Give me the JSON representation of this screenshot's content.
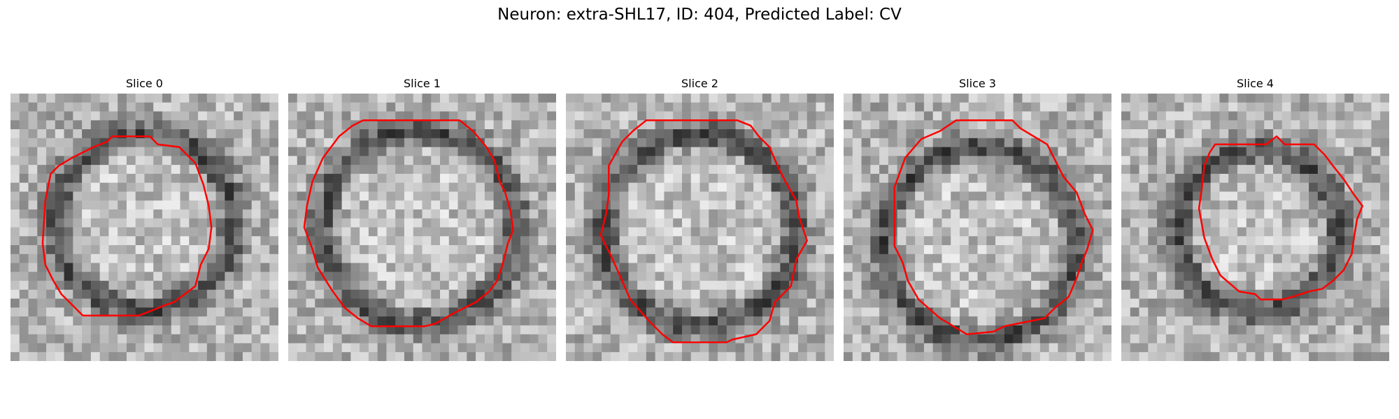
{
  "figure": {
    "title": "Neuron: extra-SHL17, ID: 404, Predicted Label: CV",
    "contour_color": "#ff0000"
  },
  "panels": [
    {
      "title": "Slice 0",
      "ring_center": [
        0.5,
        0.48
      ],
      "ring_radius": 0.33,
      "outline": [
        [
          0.38,
          0.16
        ],
        [
          0.52,
          0.16
        ],
        [
          0.55,
          0.19
        ],
        [
          0.63,
          0.2
        ],
        [
          0.69,
          0.26
        ],
        [
          0.72,
          0.34
        ],
        [
          0.74,
          0.42
        ],
        [
          0.75,
          0.5
        ],
        [
          0.74,
          0.58
        ],
        [
          0.71,
          0.64
        ],
        [
          0.69,
          0.72
        ],
        [
          0.61,
          0.78
        ],
        [
          0.58,
          0.79
        ],
        [
          0.53,
          0.81
        ],
        [
          0.48,
          0.83
        ],
        [
          0.27,
          0.83
        ],
        [
          0.19,
          0.75
        ],
        [
          0.16,
          0.7
        ],
        [
          0.13,
          0.64
        ],
        [
          0.12,
          0.56
        ],
        [
          0.13,
          0.4
        ],
        [
          0.15,
          0.3
        ],
        [
          0.18,
          0.27
        ],
        [
          0.23,
          0.24
        ],
        [
          0.27,
          0.22
        ],
        [
          0.31,
          0.2
        ],
        [
          0.36,
          0.18
        ]
      ]
    },
    {
      "title": "Slice 1",
      "ring_center": [
        0.49,
        0.5
      ],
      "ring_radius": 0.36,
      "outline": [
        [
          0.28,
          0.1
        ],
        [
          0.64,
          0.1
        ],
        [
          0.69,
          0.14
        ],
        [
          0.74,
          0.2
        ],
        [
          0.77,
          0.25
        ],
        [
          0.79,
          0.33
        ],
        [
          0.81,
          0.37
        ],
        [
          0.83,
          0.44
        ],
        [
          0.84,
          0.51
        ],
        [
          0.82,
          0.56
        ],
        [
          0.8,
          0.64
        ],
        [
          0.78,
          0.7
        ],
        [
          0.75,
          0.74
        ],
        [
          0.7,
          0.78
        ],
        [
          0.62,
          0.82
        ],
        [
          0.55,
          0.86
        ],
        [
          0.51,
          0.87
        ],
        [
          0.31,
          0.87
        ],
        [
          0.26,
          0.84
        ],
        [
          0.21,
          0.8
        ],
        [
          0.16,
          0.73
        ],
        [
          0.11,
          0.65
        ],
        [
          0.09,
          0.58
        ],
        [
          0.06,
          0.5
        ],
        [
          0.07,
          0.42
        ],
        [
          0.09,
          0.33
        ],
        [
          0.13,
          0.24
        ],
        [
          0.19,
          0.16
        ],
        [
          0.24,
          0.12
        ]
      ]
    },
    {
      "title": "Slice 2",
      "ring_center": [
        0.5,
        0.51
      ],
      "ring_radius": 0.36,
      "outline": [
        [
          0.3,
          0.1
        ],
        [
          0.64,
          0.1
        ],
        [
          0.69,
          0.12
        ],
        [
          0.72,
          0.16
        ],
        [
          0.76,
          0.2
        ],
        [
          0.79,
          0.27
        ],
        [
          0.82,
          0.33
        ],
        [
          0.86,
          0.4
        ],
        [
          0.87,
          0.46
        ],
        [
          0.9,
          0.55
        ],
        [
          0.86,
          0.62
        ],
        [
          0.84,
          0.72
        ],
        [
          0.78,
          0.78
        ],
        [
          0.76,
          0.85
        ],
        [
          0.71,
          0.9
        ],
        [
          0.62,
          0.92
        ],
        [
          0.6,
          0.93
        ],
        [
          0.4,
          0.93
        ],
        [
          0.36,
          0.9
        ],
        [
          0.31,
          0.85
        ],
        [
          0.24,
          0.77
        ],
        [
          0.21,
          0.7
        ],
        [
          0.17,
          0.61
        ],
        [
          0.13,
          0.53
        ],
        [
          0.15,
          0.45
        ],
        [
          0.16,
          0.38
        ],
        [
          0.16,
          0.27
        ],
        [
          0.21,
          0.18
        ],
        [
          0.25,
          0.14
        ]
      ]
    },
    {
      "title": "Slice 3",
      "ring_center": [
        0.51,
        0.56
      ],
      "ring_radius": 0.36,
      "outline": [
        [
          0.42,
          0.1
        ],
        [
          0.63,
          0.1
        ],
        [
          0.66,
          0.13
        ],
        [
          0.71,
          0.16
        ],
        [
          0.76,
          0.19
        ],
        [
          0.79,
          0.25
        ],
        [
          0.82,
          0.31
        ],
        [
          0.87,
          0.37
        ],
        [
          0.9,
          0.45
        ],
        [
          0.93,
          0.51
        ],
        [
          0.91,
          0.58
        ],
        [
          0.89,
          0.63
        ],
        [
          0.87,
          0.69
        ],
        [
          0.84,
          0.76
        ],
        [
          0.79,
          0.8
        ],
        [
          0.75,
          0.84
        ],
        [
          0.65,
          0.86
        ],
        [
          0.6,
          0.87
        ],
        [
          0.56,
          0.89
        ],
        [
          0.46,
          0.9
        ],
        [
          0.41,
          0.87
        ],
        [
          0.36,
          0.84
        ],
        [
          0.28,
          0.77
        ],
        [
          0.24,
          0.7
        ],
        [
          0.22,
          0.63
        ],
        [
          0.19,
          0.57
        ],
        [
          0.19,
          0.35
        ],
        [
          0.23,
          0.24
        ],
        [
          0.29,
          0.17
        ],
        [
          0.36,
          0.14
        ]
      ]
    },
    {
      "title": "Slice 4",
      "ring_center": [
        0.51,
        0.51
      ],
      "ring_radius": 0.3,
      "outline": [
        [
          0.35,
          0.19
        ],
        [
          0.54,
          0.19
        ],
        [
          0.58,
          0.16
        ],
        [
          0.61,
          0.19
        ],
        [
          0.72,
          0.19
        ],
        [
          0.76,
          0.23
        ],
        [
          0.79,
          0.27
        ],
        [
          0.83,
          0.32
        ],
        [
          0.87,
          0.38
        ],
        [
          0.9,
          0.42
        ],
        [
          0.88,
          0.47
        ],
        [
          0.87,
          0.53
        ],
        [
          0.86,
          0.6
        ],
        [
          0.83,
          0.66
        ],
        [
          0.79,
          0.7
        ],
        [
          0.75,
          0.73
        ],
        [
          0.7,
          0.74
        ],
        [
          0.64,
          0.76
        ],
        [
          0.6,
          0.77
        ],
        [
          0.52,
          0.77
        ],
        [
          0.5,
          0.75
        ],
        [
          0.44,
          0.74
        ],
        [
          0.37,
          0.68
        ],
        [
          0.34,
          0.62
        ],
        [
          0.31,
          0.54
        ],
        [
          0.29,
          0.43
        ],
        [
          0.3,
          0.36
        ],
        [
          0.31,
          0.27
        ],
        [
          0.33,
          0.22
        ]
      ]
    }
  ]
}
